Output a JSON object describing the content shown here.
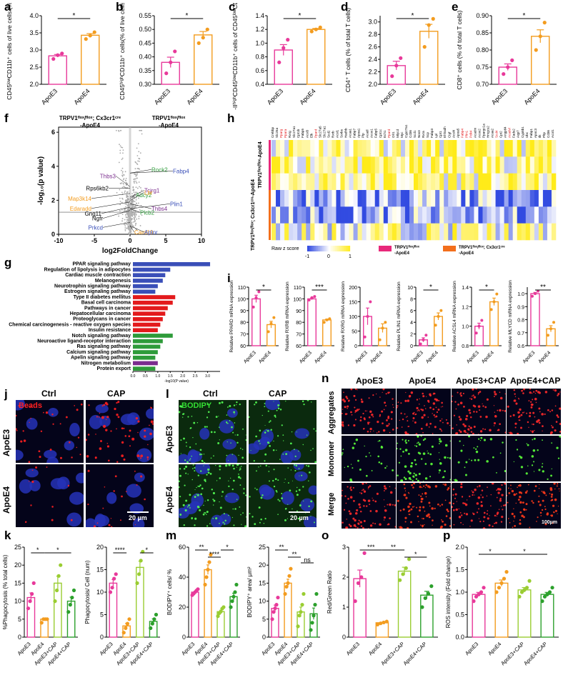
{
  "colors": {
    "apoe3": "#e8399a",
    "apoe4": "#f39c1f",
    "cap3": "#9acd32",
    "cap4": "#2ca02c",
    "blue": "#3a4fb8",
    "red": "#e31a1c",
    "green": "#2e9b3a",
    "purple": "#7b2d8e"
  },
  "panel_letters": {
    "a": "a",
    "b": "b",
    "c": "c",
    "d": "d",
    "e": "e",
    "f": "f",
    "g": "g",
    "h": "h",
    "i": "i",
    "j": "j",
    "k": "k",
    "l": "l",
    "m": "m",
    "n": "n",
    "o": "o",
    "p": "p"
  },
  "chart_data": [
    {
      "id": "a",
      "type": "bar",
      "categories": [
        "ApoE3",
        "ApoE4"
      ],
      "values": [
        2.83,
        3.43
      ],
      "points": [
        [
          2.74,
          2.85,
          2.9
        ],
        [
          3.32,
          3.42,
          3.52
        ]
      ],
      "ylabel": "CD45ˡᵒʷCD11b⁺ cells of live cells (%)",
      "ylim": [
        2.0,
        4.0
      ],
      "yticks": [
        "2.0",
        "2.5",
        "3.0",
        "3.5",
        "4.0"
      ],
      "sig": "*"
    },
    {
      "id": "b",
      "type": "bar",
      "categories": [
        "ApoE3",
        "ApoE4"
      ],
      "values": [
        0.38,
        0.48
      ],
      "points": [
        [
          0.34,
          0.38,
          0.42
        ],
        [
          0.45,
          0.47,
          0.5
        ]
      ],
      "ylabel": "CD45ʰⁱᵍʰCD11b⁺ cells(% of live cells)",
      "ylim": [
        0.3,
        0.55
      ],
      "yticks": [
        "0.30",
        "0.35",
        "0.40",
        "0.45",
        "0.50",
        "0.55"
      ],
      "sig": "*"
    },
    {
      "id": "c",
      "type": "bar",
      "categories": [
        "ApoE3",
        "ApoE4"
      ],
      "values": [
        0.9,
        1.2
      ],
      "points": [
        [
          0.72,
          0.93,
          1.05
        ],
        [
          1.17,
          1.2,
          1.23
        ]
      ],
      "ylabel": "MHC-IIʰⁱᵍʰCD45ˡᵒʷCD11b⁺ cells of CD45ˡᵒʷCD11b⁺ (%)",
      "ylim": [
        0.4,
        1.4
      ],
      "yticks": [
        "0.4",
        "0.6",
        "0.8",
        "1.0",
        "1.2",
        "1.4"
      ],
      "sig": "*"
    },
    {
      "id": "d",
      "type": "bar",
      "categories": [
        "ApoE3",
        "ApoE4"
      ],
      "values": [
        2.3,
        2.85
      ],
      "points": [
        [
          2.13,
          2.3,
          2.42
        ],
        [
          2.6,
          2.95,
          3.05
        ]
      ],
      "ylabel": "CD4⁺ T cells (% of total T cells)",
      "ylim": [
        2.0,
        3.1
      ],
      "yticks": [
        "2.0",
        "2.2",
        "2.4",
        "2.6",
        "2.8",
        "3.0"
      ],
      "sig": "*"
    },
    {
      "id": "e",
      "type": "bar",
      "categories": [
        "ApoE3",
        "ApoE4"
      ],
      "values": [
        0.75,
        0.84
      ],
      "points": [
        [
          0.73,
          0.75,
          0.77
        ],
        [
          0.8,
          0.84,
          0.88
        ]
      ],
      "ylabel": "CD8⁺ cells (% of total T cells)",
      "ylim": [
        0.7,
        0.9
      ],
      "yticks": [
        "0.70",
        "0.75",
        "0.80",
        "0.85",
        "0.90"
      ],
      "sig": "*"
    },
    {
      "id": "g",
      "type": "bar",
      "orientation": "horizontal",
      "categories": [
        "PPAR signaling pathway",
        "Regulation of lipolysis in adipocytes",
        "Cardiac muscle contraction",
        "Melanogenesis",
        "Neurotrophin signaling pathway",
        "Estrogen signaling pathway",
        "Type II diabetes mellitus",
        "Basal cell carcinoma",
        "Pathways in cancer",
        "Hepatocellular carcinoma",
        "Proteoglycans in cancer",
        "Chemical carcinogenesis - reactive oxygen species",
        "Insulin resistance",
        "Notch signaling pathway",
        "Neuroactive ligand-receptor interaction",
        "Ras signaling pathway",
        "Calcium signaling pathway",
        "Apelin signaling pathway",
        "Nitrogen metabolism",
        "Protein export"
      ],
      "values": [
        3.1,
        1.5,
        1.3,
        1.2,
        1.0,
        0.9,
        1.7,
        1.6,
        1.4,
        1.3,
        1.2,
        1.1,
        1.0,
        1.6,
        1.2,
        1.1,
        1.0,
        0.9,
        1.0,
        0.9
      ],
      "groups": [
        "blue",
        "blue",
        "blue",
        "blue",
        "blue",
        "blue",
        "red",
        "red",
        "red",
        "red",
        "red",
        "red",
        "red",
        "green",
        "green",
        "green",
        "green",
        "green",
        "purple",
        "green"
      ],
      "xlabel": "-log10(P value)",
      "xlim": [
        0,
        3.5
      ],
      "xticks": [
        "0.0",
        "0.5",
        "1.0",
        "1.5",
        "2.0",
        "2.5",
        "3.0"
      ]
    },
    {
      "id": "i1",
      "type": "bar",
      "categories": [
        "ApoE3",
        "ApoE4"
      ],
      "values": [
        100,
        78
      ],
      "points": [
        [
          93,
          101,
          106
        ],
        [
          72,
          79,
          84
        ]
      ],
      "ylabel": "Relative PPARD mRNA expression",
      "ylim": [
        60,
        110
      ],
      "yticks": [
        "60",
        "70",
        "80",
        "90",
        "100",
        "110"
      ],
      "sig": "*"
    },
    {
      "id": "i2",
      "type": "bar",
      "categories": [
        "ApoE3",
        "ApoE4"
      ],
      "values": [
        100,
        82
      ],
      "points": [
        [
          99,
          101,
          102
        ],
        [
          80,
          82,
          83
        ]
      ],
      "ylabel": "Relative RXRB mRNA expression",
      "ylim": [
        60,
        110
      ],
      "yticks": [
        "60",
        "70",
        "80",
        "90",
        "100",
        "110"
      ],
      "sig": "***"
    },
    {
      "id": "i3",
      "type": "bar",
      "categories": [
        "ApoE3",
        "ApoE4"
      ],
      "values": [
        100,
        60
      ],
      "points": [
        [
          30,
          100,
          150
        ],
        [
          20,
          60,
          80
        ]
      ],
      "ylabel": "Relative RXRG mRNA expression",
      "ylim": [
        0,
        200
      ],
      "yticks": [
        "0",
        "50",
        "100",
        "150",
        "200"
      ],
      "sig": ""
    },
    {
      "id": "i4",
      "type": "bar",
      "categories": [
        "ApoE3",
        "ApoE4"
      ],
      "values": [
        1.0,
        5.0
      ],
      "points": [
        [
          0.3,
          1.0,
          1.8
        ],
        [
          3.5,
          5.0,
          6.0
        ]
      ],
      "ylabel": "Relative PLIN1 mRNA expression",
      "ylim": [
        0,
        10
      ],
      "yticks": [
        "0",
        "2",
        "4",
        "6",
        "8",
        "10"
      ],
      "sig": "*"
    },
    {
      "id": "i5",
      "type": "bar",
      "categories": [
        "ApoE3",
        "ApoE4"
      ],
      "values": [
        1.0,
        1.25
      ],
      "points": [
        [
          0.93,
          1.0,
          1.06
        ],
        [
          1.17,
          1.25,
          1.33
        ]
      ],
      "ylabel": "Relative ACSL4 mRNA expression",
      "ylim": [
        0.8,
        1.4
      ],
      "yticks": [
        "0.8",
        "1.0",
        "1.2",
        "1.4"
      ],
      "sig": "*"
    },
    {
      "id": "i6",
      "type": "bar",
      "categories": [
        "ApoE3",
        "ApoE4"
      ],
      "values": [
        1.0,
        0.73
      ],
      "points": [
        [
          0.98,
          1.0,
          1.02
        ],
        [
          0.68,
          0.73,
          0.78
        ]
      ],
      "ylabel": "Relative MLYCD mRNA expression",
      "ylim": [
        0.6,
        1.05
      ],
      "yticks": [
        "0.6",
        "0.7",
        "0.8",
        "0.9",
        "1.0"
      ],
      "sig": "**"
    },
    {
      "id": "k1",
      "type": "bar",
      "categories": [
        "ApoE3",
        "ApoE4",
        "ApoE3+CAP",
        "ApoE4+CAP"
      ],
      "values": [
        11,
        5,
        15,
        10
      ],
      "points": [
        [
          8,
          10,
          12,
          15
        ],
        [
          4,
          5,
          5,
          5
        ],
        [
          10,
          13,
          17,
          20
        ],
        [
          7,
          9,
          11,
          13
        ]
      ],
      "ylabel": "%Phagocytosis (% total cells)",
      "ylim": [
        0,
        25
      ],
      "yticks": [
        "0",
        "5",
        "10",
        "15",
        "20",
        "25"
      ],
      "sig": [
        "*",
        "*"
      ]
    },
    {
      "id": "k2",
      "type": "bar",
      "categories": [
        "ApoE3",
        "ApoE4",
        "ApoE3+CAP",
        "ApoE4+CAP"
      ],
      "values": [
        12,
        2.5,
        15.5,
        3.5
      ],
      "points": [
        [
          10,
          11,
          13,
          14
        ],
        [
          1,
          2,
          3,
          4
        ],
        [
          12,
          14,
          17,
          19
        ],
        [
          2,
          3,
          4,
          5
        ]
      ],
      "ylabel": "Phagocytosis/ Cell (num)",
      "ylim": [
        0,
        20
      ],
      "yticks": [
        "0",
        "5",
        "10",
        "15",
        "20"
      ],
      "sig": [
        "****",
        "*"
      ]
    },
    {
      "id": "m1",
      "type": "bar",
      "categories": [
        "ApoE3",
        "ApoE4",
        "ApoE3+CAP",
        "ApoE4+CAP"
      ],
      "values": [
        30,
        45,
        17,
        27
      ],
      "points": [
        [
          28,
          29,
          30,
          31,
          32
        ],
        [
          35,
          40,
          45,
          50,
          55
        ],
        [
          14,
          16,
          17,
          19,
          20
        ],
        [
          20,
          24,
          27,
          30,
          35
        ]
      ],
      "ylabel": "BODIPY⁺ cells/ %",
      "ylim": [
        0,
        60
      ],
      "yticks": [
        "0",
        "20",
        "40",
        "60"
      ],
      "sig": [
        "**",
        "*",
        "****"
      ]
    },
    {
      "id": "m2",
      "type": "bar",
      "categories": [
        "ApoE3",
        "ApoE4",
        "ApoE3+CAP",
        "ApoE4+CAP"
      ],
      "values": [
        8,
        15,
        7,
        6.5
      ],
      "points": [
        [
          5,
          7,
          8,
          9,
          11
        ],
        [
          12,
          14,
          15,
          17,
          19
        ],
        [
          3,
          6,
          7,
          9,
          12
        ],
        [
          2,
          4,
          6,
          9,
          12
        ]
      ],
      "ylabel": "BODIPY⁺ area/ µm²",
      "ylim": [
        0,
        25
      ],
      "yticks": [
        "0",
        "5",
        "10",
        "15",
        "20",
        "25"
      ],
      "sig": [
        "**",
        "**",
        "ns"
      ]
    },
    {
      "id": "o",
      "type": "bar",
      "categories": [
        "ApoE3",
        "ApoE4",
        "ApoE3+CAP",
        "ApoE4+CAP"
      ],
      "values": [
        1.95,
        0.48,
        2.2,
        1.4
      ],
      "points": [
        [
          1.2,
          1.8,
          2.0,
          2.8
        ],
        [
          0.42,
          0.46,
          0.49,
          0.52
        ],
        [
          1.9,
          2.1,
          2.3,
          2.6
        ],
        [
          1.0,
          1.3,
          1.45,
          1.7
        ]
      ],
      "ylabel": "Red/Green Ratio",
      "ylim": [
        0,
        3
      ],
      "yticks": [
        "0",
        "1",
        "2",
        "3"
      ],
      "sig": [
        "***",
        "**",
        "*"
      ]
    },
    {
      "id": "p",
      "type": "bar",
      "categories": [
        "ApoE3",
        "ApoE4",
        "ApoE3+CAP",
        "ApoE4+CAP"
      ],
      "values": [
        0.95,
        1.2,
        1.05,
        0.95
      ],
      "points": [
        [
          0.8,
          0.9,
          0.95,
          1.0,
          1.1
        ],
        [
          1.0,
          1.1,
          1.2,
          1.3,
          1.45
        ],
        [
          0.9,
          1.0,
          1.05,
          1.1,
          1.25
        ],
        [
          0.8,
          0.9,
          0.95,
          1.0,
          1.1
        ]
      ],
      "ylabel": "ROS intensity (Fold change)",
      "ylim": [
        0,
        2.0
      ],
      "yticks": [
        "0.0",
        "0.5",
        "1.0",
        "1.5",
        "2.0"
      ],
      "sig": [
        "*",
        "*"
      ]
    }
  ],
  "volcano": {
    "title_left": "TRPV1ᶠˡᵒˣ/ᶠˡᵒˣ; Cx3cr1ᶜʳᵉ",
    "title_left2": "-ApoE4",
    "title_right": "TRPV1ᶠˡᵒˣ/ᶠˡᵒˣ",
    "title_right2": "-ApoE4",
    "xlabel": "log2FoldChange",
    "ylabel": "-log₁₀(p value)",
    "xticks": [
      "-10",
      "-5",
      "0",
      "5",
      "10"
    ],
    "yticks": [
      "0",
      "2",
      "4",
      "6"
    ],
    "genes": [
      {
        "name": "Thbs3",
        "color": "#7b2d8e"
      },
      {
        "name": "Rock2",
        "color": "#2e9b3a"
      },
      {
        "name": "Fabp4",
        "color": "#3a4fb8"
      },
      {
        "name": "Rps6kb2",
        "color": "#000000"
      },
      {
        "name": "Map3k14",
        "color": "#f39c1f"
      },
      {
        "name": "Tcirg1",
        "color": "#7b2d8e"
      },
      {
        "name": "Edaradd",
        "color": "#f39c1f"
      },
      {
        "name": "Adcy2",
        "color": "#2e9b3a"
      },
      {
        "name": "Lbr",
        "color": "#f39c1f"
      },
      {
        "name": "Gng11",
        "color": "#000000"
      },
      {
        "name": "Thbs4",
        "color": "#7b2d8e"
      },
      {
        "name": "Ngfr",
        "color": "#000000"
      },
      {
        "name": "Plcb2",
        "color": "#2e9b3a"
      },
      {
        "name": "Plin1",
        "color": "#3a4fb8"
      },
      {
        "name": "Prkcd",
        "color": "#3a4fb8"
      },
      {
        "name": "Card10",
        "color": "#f39c1f"
      },
      {
        "name": "Aplnr",
        "color": "#3a4fb8"
      }
    ]
  },
  "heatmap": {
    "genes": [
      "Crebbp",
      "Slc25a",
      "Pparg",
      "Ppara",
      "Rxrg",
      "Slc27a1",
      "Cpt1b",
      "Fabp5",
      "Acsl3",
      "Elk",
      "Ppard",
      "Slc27a5",
      "Slc27a1",
      "Scd2",
      "Rxrb",
      "Acsl1",
      "Sorbs",
      "Hadhb",
      "Acaa1",
      "Fabp7",
      "Apoa1",
      "Plp",
      "Acadl",
      "Acox1",
      "Fabp5",
      "Cpt1c",
      "Ech1",
      "Ppard",
      "Olr1",
      "Mlycd",
      "Myc",
      "Cyp27a1",
      "Cd36",
      "Scd1",
      "Nos3",
      "Rxra",
      "Scp",
      "Fabp3",
      "Lpl",
      "Cpt1",
      "Ehhadh",
      "Ctgf",
      "Acsl4",
      "Apoa5",
      "Fabp4",
      "Plin1",
      "Pdk4",
      "Acadm",
      "Acox2",
      "Ppargc1a",
      "Hmgcs2",
      "Acaa2",
      "Scd4",
      "Cpt2",
      "Angptl4",
      "Acadvl",
      "Fads2",
      "Aqp7",
      "Cyp8b1",
      "Ubc",
      "Fabp1",
      "Apoc3",
      "Ilk",
      "Pltp",
      "Cd36",
      "Acot1"
    ],
    "red_genes": [
      2,
      3,
      10,
      27,
      44,
      45,
      46,
      52,
      55
    ],
    "rows": 6,
    "group1": "TRPV1ᶠˡᵒˣ/ᶠˡᵒˣ-ApoE4",
    "group2": "TRPV1ᶠˡᵒˣ/ᶠˡᵒˣ; Cx3cr1ᶜʳᵉ-ApoE4",
    "legend_title": "Raw z score",
    "legend_ticks": [
      "-1",
      "0",
      "1"
    ],
    "legend_g1": "TRPV1ᶠˡᵒˣ/ᶠˡᵒˣ",
    "legend_g1b": "-ApoE4",
    "legend_g2": "TRPV1ᶠˡᵒˣ/ᶠˡᵒˣ; Cx3cr1ᶜʳᵉ",
    "legend_g2b": "-ApoE4"
  },
  "micro": {
    "j": {
      "cols": [
        "Ctrl",
        "CAP"
      ],
      "rows": [
        "ApoE3",
        "ApoE4"
      ],
      "tag": "Beads",
      "scale": "20 µm"
    },
    "l": {
      "cols": [
        "Ctrl",
        "CAP"
      ],
      "rows": [
        "ApoE3",
        "ApoE4"
      ],
      "tag": "BODIPY",
      "scale": "20 µm"
    },
    "n": {
      "cols": [
        "ApoE3",
        "ApoE4",
        "ApoE3+CAP",
        "ApoE4+CAP"
      ],
      "rows": [
        "Aggregates",
        "Monomer",
        "Merge"
      ],
      "scale": "100µm"
    }
  }
}
